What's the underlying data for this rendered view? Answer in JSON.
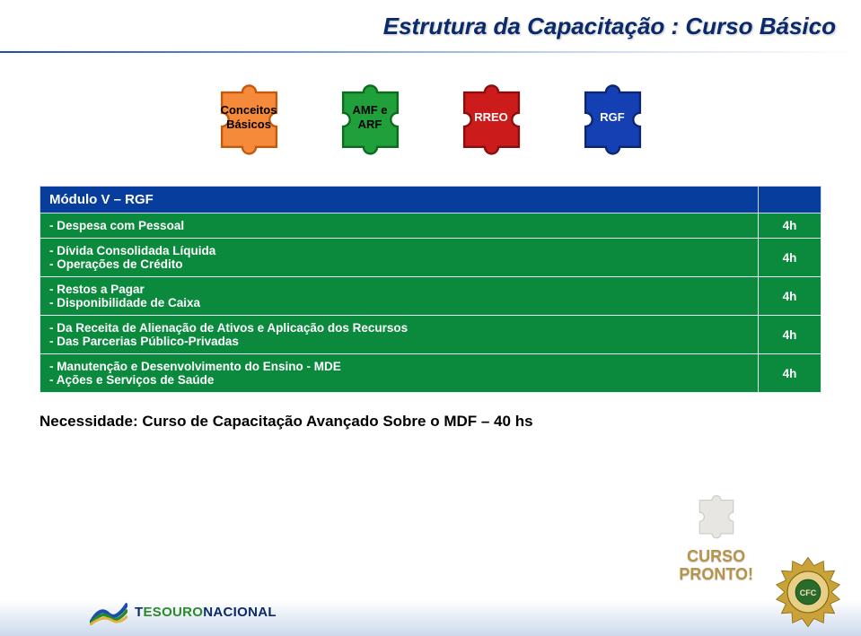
{
  "title": "Estrutura da Capacitação : Curso Básico",
  "puzzles": [
    {
      "label": "Conceitos\nBásicos",
      "fill": "#f58a3a",
      "stroke": "#c2590c",
      "text": "#000"
    },
    {
      "label": "AMF e\nARF",
      "fill": "#1fa03a",
      "stroke": "#0d6a1f",
      "text": "#000"
    },
    {
      "label": "RREO",
      "fill": "#cc1b1b",
      "stroke": "#8a0e0e",
      "text": "#fff"
    },
    {
      "label": "RGF",
      "fill": "#1440b3",
      "stroke": "#0a2770",
      "text": "#fff"
    }
  ],
  "table": {
    "header": "Módulo V – RGF",
    "rows": [
      {
        "lines": [
          "- Despesa com Pessoal"
        ],
        "dur": "4h"
      },
      {
        "lines": [
          "- Dívida Consolidada Líquida",
          "- Operações de Crédito"
        ],
        "dur": "4h"
      },
      {
        "lines": [
          "- Restos a Pagar",
          "- Disponibilidade de Caixa"
        ],
        "dur": "4h"
      },
      {
        "lines": [
          "- Da Receita de Alienação de Ativos e Aplicação dos Recursos",
          "- Das Parcerias Público-Privadas"
        ],
        "dur": "4h"
      },
      {
        "lines": [
          "- Manutenção e Desenvolvimento do Ensino - MDE",
          "- Ações e Serviços de Saúde"
        ],
        "dur": "4h"
      }
    ]
  },
  "need": "Necessidade: Curso de Capacitação Avançado Sobre o MDF – 40 hs",
  "footer": {
    "tn_blue": "T",
    "tn_green": "ESOURO",
    "tn_blue2": "NACIONAL"
  },
  "badge": {
    "line1": "CURSO",
    "line2": "PRONTO!"
  },
  "colors": {
    "header_bg": "#073e9e",
    "row_bg": "#0b8a3e",
    "title_text": "#0a2a6b"
  },
  "seal_label": "CFC"
}
